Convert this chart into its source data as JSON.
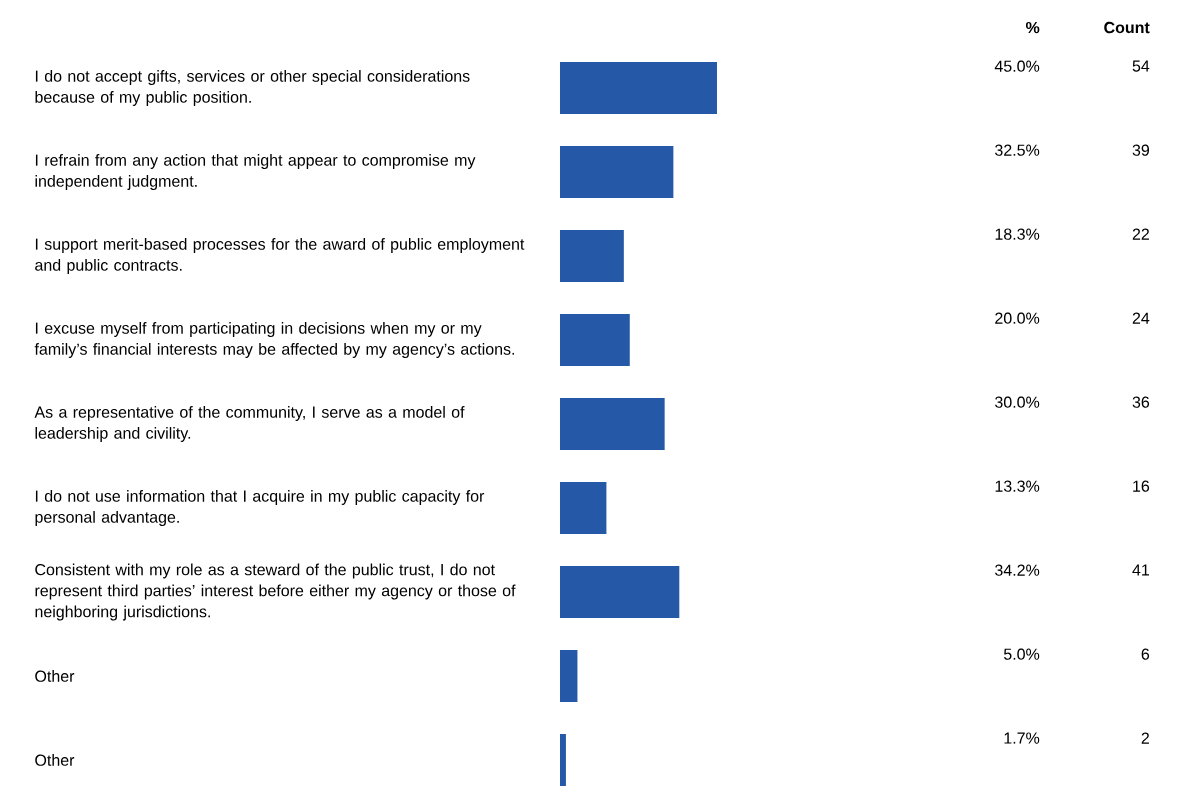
{
  "chart_data": {
    "type": "bar",
    "orientation": "horizontal",
    "categories": [
      "I do not accept gifts, services or other special considerations because of my public position.",
      "I refrain from any action that might appear to compromise my independent judgment.",
      "I support merit-based processes for the award of public employment and public contracts.",
      "I excuse myself from participating in decisions when my or my family’s financial interests may be affected by my agency’s actions.",
      "As a representative of the community, I serve as a model of leadership and civility.",
      "I do not use information that I acquire in my public capacity for personal advantage.",
      "Consistent with my role as a steward of the public trust, I do not represent third parties’ interest before either my agency or those of neighboring jurisdictions.",
      "Other",
      "Other"
    ],
    "values": [
      45.0,
      32.5,
      18.3,
      20.0,
      30.0,
      13.3,
      34.2,
      5.0,
      1.7
    ],
    "value_labels": [
      "45.0%",
      "32.5%",
      "18.3%",
      "20.0%",
      "30.0%",
      "13.3%",
      "34.2%",
      "5.0%",
      "1.7%"
    ],
    "color": "#2559a8",
    "tick_labels": "y",
    "annotations": [
      "%",
      "Count",
      "54",
      "39",
      "22",
      "24",
      "36",
      "16",
      "41",
      "6",
      "2"
    ]
  }
}
